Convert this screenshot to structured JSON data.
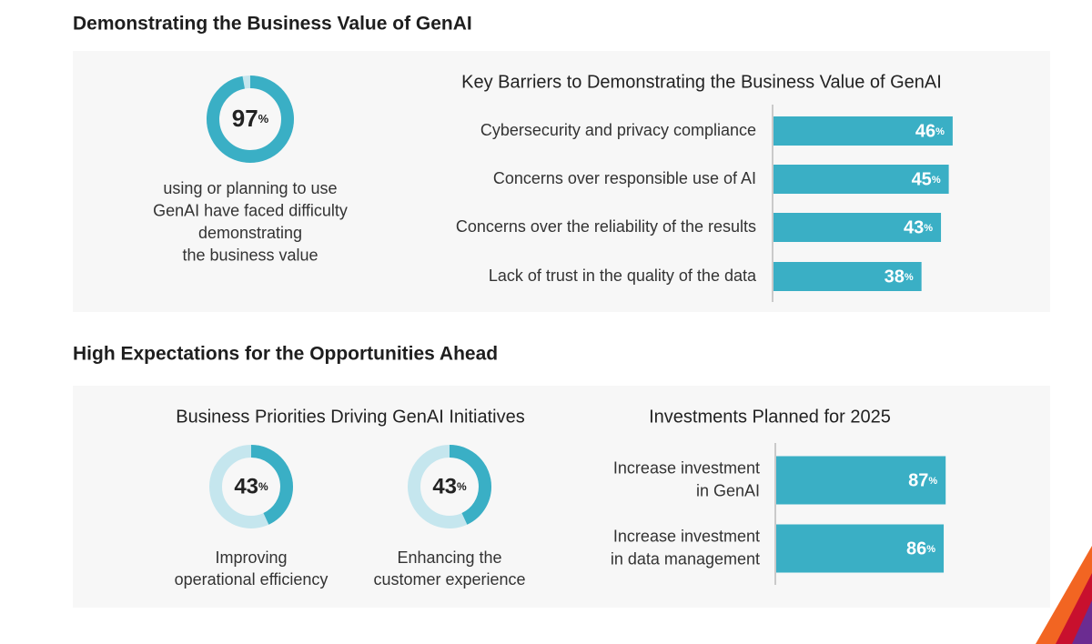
{
  "sections": [
    {
      "title": "Demonstrating the Business Value of GenAI"
    },
    {
      "title": "High Expectations for the Opportunities Ahead"
    }
  ],
  "chart_data": [
    {
      "type": "donut",
      "color": "#3aafc5",
      "track_color": "#c5e6ee",
      "categories": [
        [
          "using or planning to use",
          "GenAI have faced difficulty",
          "demonstrating",
          "the business value"
        ]
      ],
      "values": [
        97
      ],
      "value_labels": [
        "97%"
      ]
    },
    {
      "type": "bar",
      "orientation": "horizontal",
      "color": "#3aafc5",
      "title": "Key Barriers to Demonstrating the Business Value of GenAI",
      "categories": [
        [
          "Cybersecurity and privacy compliance"
        ],
        [
          "Concerns over responsible use of AI"
        ],
        [
          "Concerns over the reliability of the results"
        ],
        [
          "Lack of trust in the quality of the data"
        ]
      ],
      "values": [
        46,
        45,
        43,
        38
      ],
      "value_labels": [
        "46%",
        "45%",
        "43%",
        "38%"
      ]
    },
    {
      "type": "donut",
      "color": "#3aafc5",
      "track_color": "#c5e6ee",
      "title": "Business Priorities Driving GenAI Initiatives",
      "categories": [
        [
          "Improving",
          "operational efficiency"
        ],
        [
          "Enhancing the",
          "customer experience"
        ]
      ],
      "values": [
        43,
        43
      ],
      "value_labels": [
        "43%",
        "43%"
      ]
    },
    {
      "type": "bar",
      "orientation": "horizontal",
      "color": "#3aafc5",
      "title": "Investments Planned for 2025",
      "categories": [
        [
          "Increase investment",
          "in GenAI"
        ],
        [
          "Increase investment",
          "in data management"
        ]
      ],
      "values": [
        87,
        86
      ],
      "value_labels": [
        "87%",
        "86%"
      ]
    }
  ]
}
